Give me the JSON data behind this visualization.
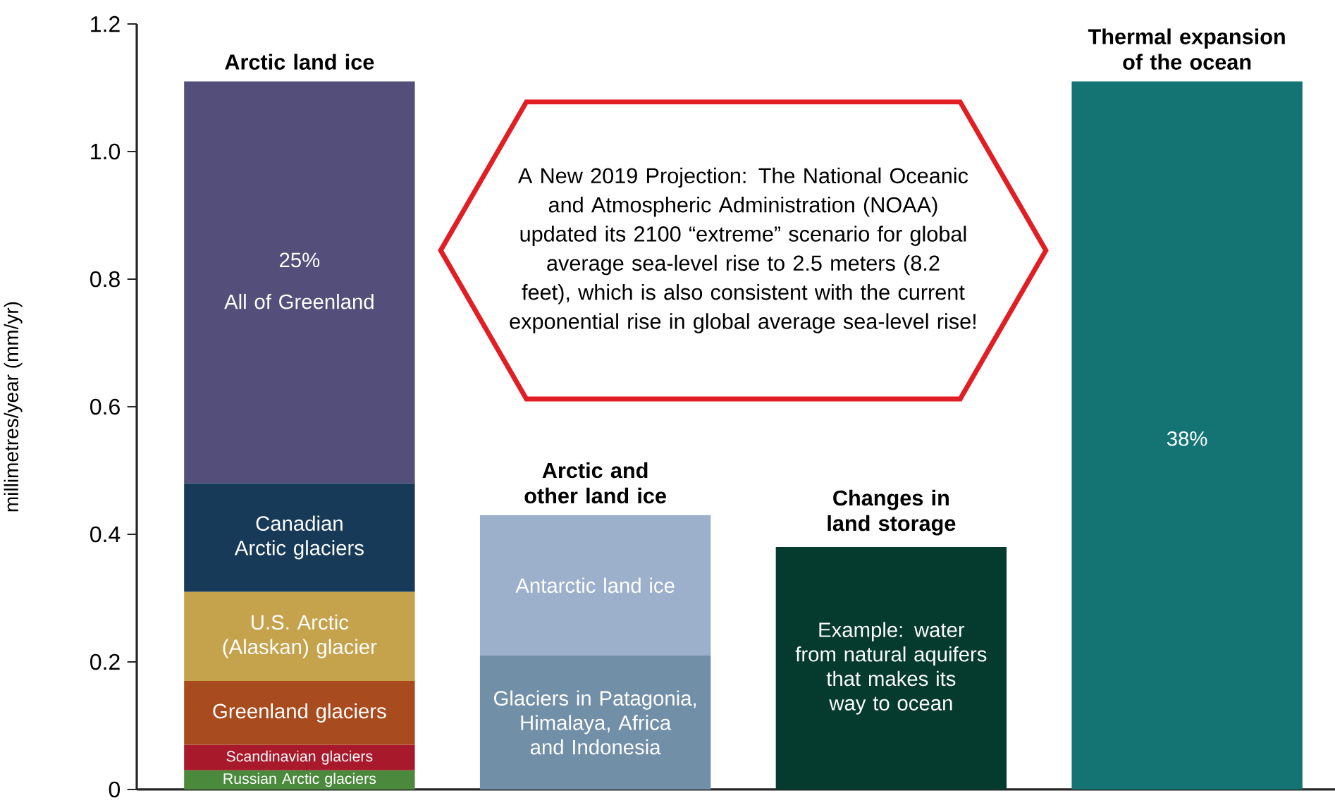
{
  "chart_data": {
    "type": "bar",
    "stacked": true,
    "ylabel": "millimetres/year (mm/yr)",
    "categories": [
      "Arctic land ice",
      "Arctic and other land ice",
      "Changes in land storage",
      "Thermal expansion of the ocean"
    ],
    "ylim": [
      0,
      1.2
    ],
    "yticks": [
      0,
      0.2,
      0.4,
      0.6,
      0.8,
      {
        "value": 1,
        "label": "1.0"
      },
      1.2
    ],
    "series": [
      {
        "name": "Russian Arctic glaciers",
        "color": "#4b8a3c",
        "values": [
          0.03,
          null,
          null,
          null
        ]
      },
      {
        "name": "Scandinavian glaciers",
        "color": "#a81a2b",
        "values": [
          0.04,
          null,
          null,
          null
        ]
      },
      {
        "name": "Greenland glaciers",
        "color": "#a84b1e",
        "values": [
          0.1,
          null,
          null,
          null
        ]
      },
      {
        "name": "U.S. Arctic (Alaskan) glacier",
        "color": "#c5a24c",
        "values": [
          0.14,
          null,
          null,
          null
        ]
      },
      {
        "name": "Canadian Arctic glaciers",
        "color": "#173a58",
        "values": [
          0.17,
          null,
          null,
          null
        ]
      },
      {
        "name": "All of Greenland",
        "color": "#534f7a",
        "values": [
          0.63,
          null,
          null,
          null
        ]
      },
      {
        "name": "Glaciers in Patagonia, Himalaya, Africa and Indonesia",
        "color": "#728fa8",
        "values": [
          null,
          0.21,
          null,
          null
        ]
      },
      {
        "name": "Antarctic land ice",
        "color": "#9cb0cb",
        "values": [
          null,
          0.22,
          null,
          null
        ]
      },
      {
        "name": "Example: water from natural aquifers that makes its way to ocean",
        "color": "#053a2e",
        "values": [
          null,
          null,
          0.38,
          null
        ]
      },
      {
        "color": "#147474",
        "values": [
          null,
          null,
          null,
          1.11
        ]
      }
    ],
    "annotations": [
      "A New 2019 Projection: The National Oceanic and Atmospheric Administration (NOAA) updated its 2100 “extreme” scenario for global average sea-level rise to 2.5 meters (8.2 feet), which is also consistent with the current exponential rise in global average sea-level rise!",
      "25%",
      "38%"
    ]
  }
}
